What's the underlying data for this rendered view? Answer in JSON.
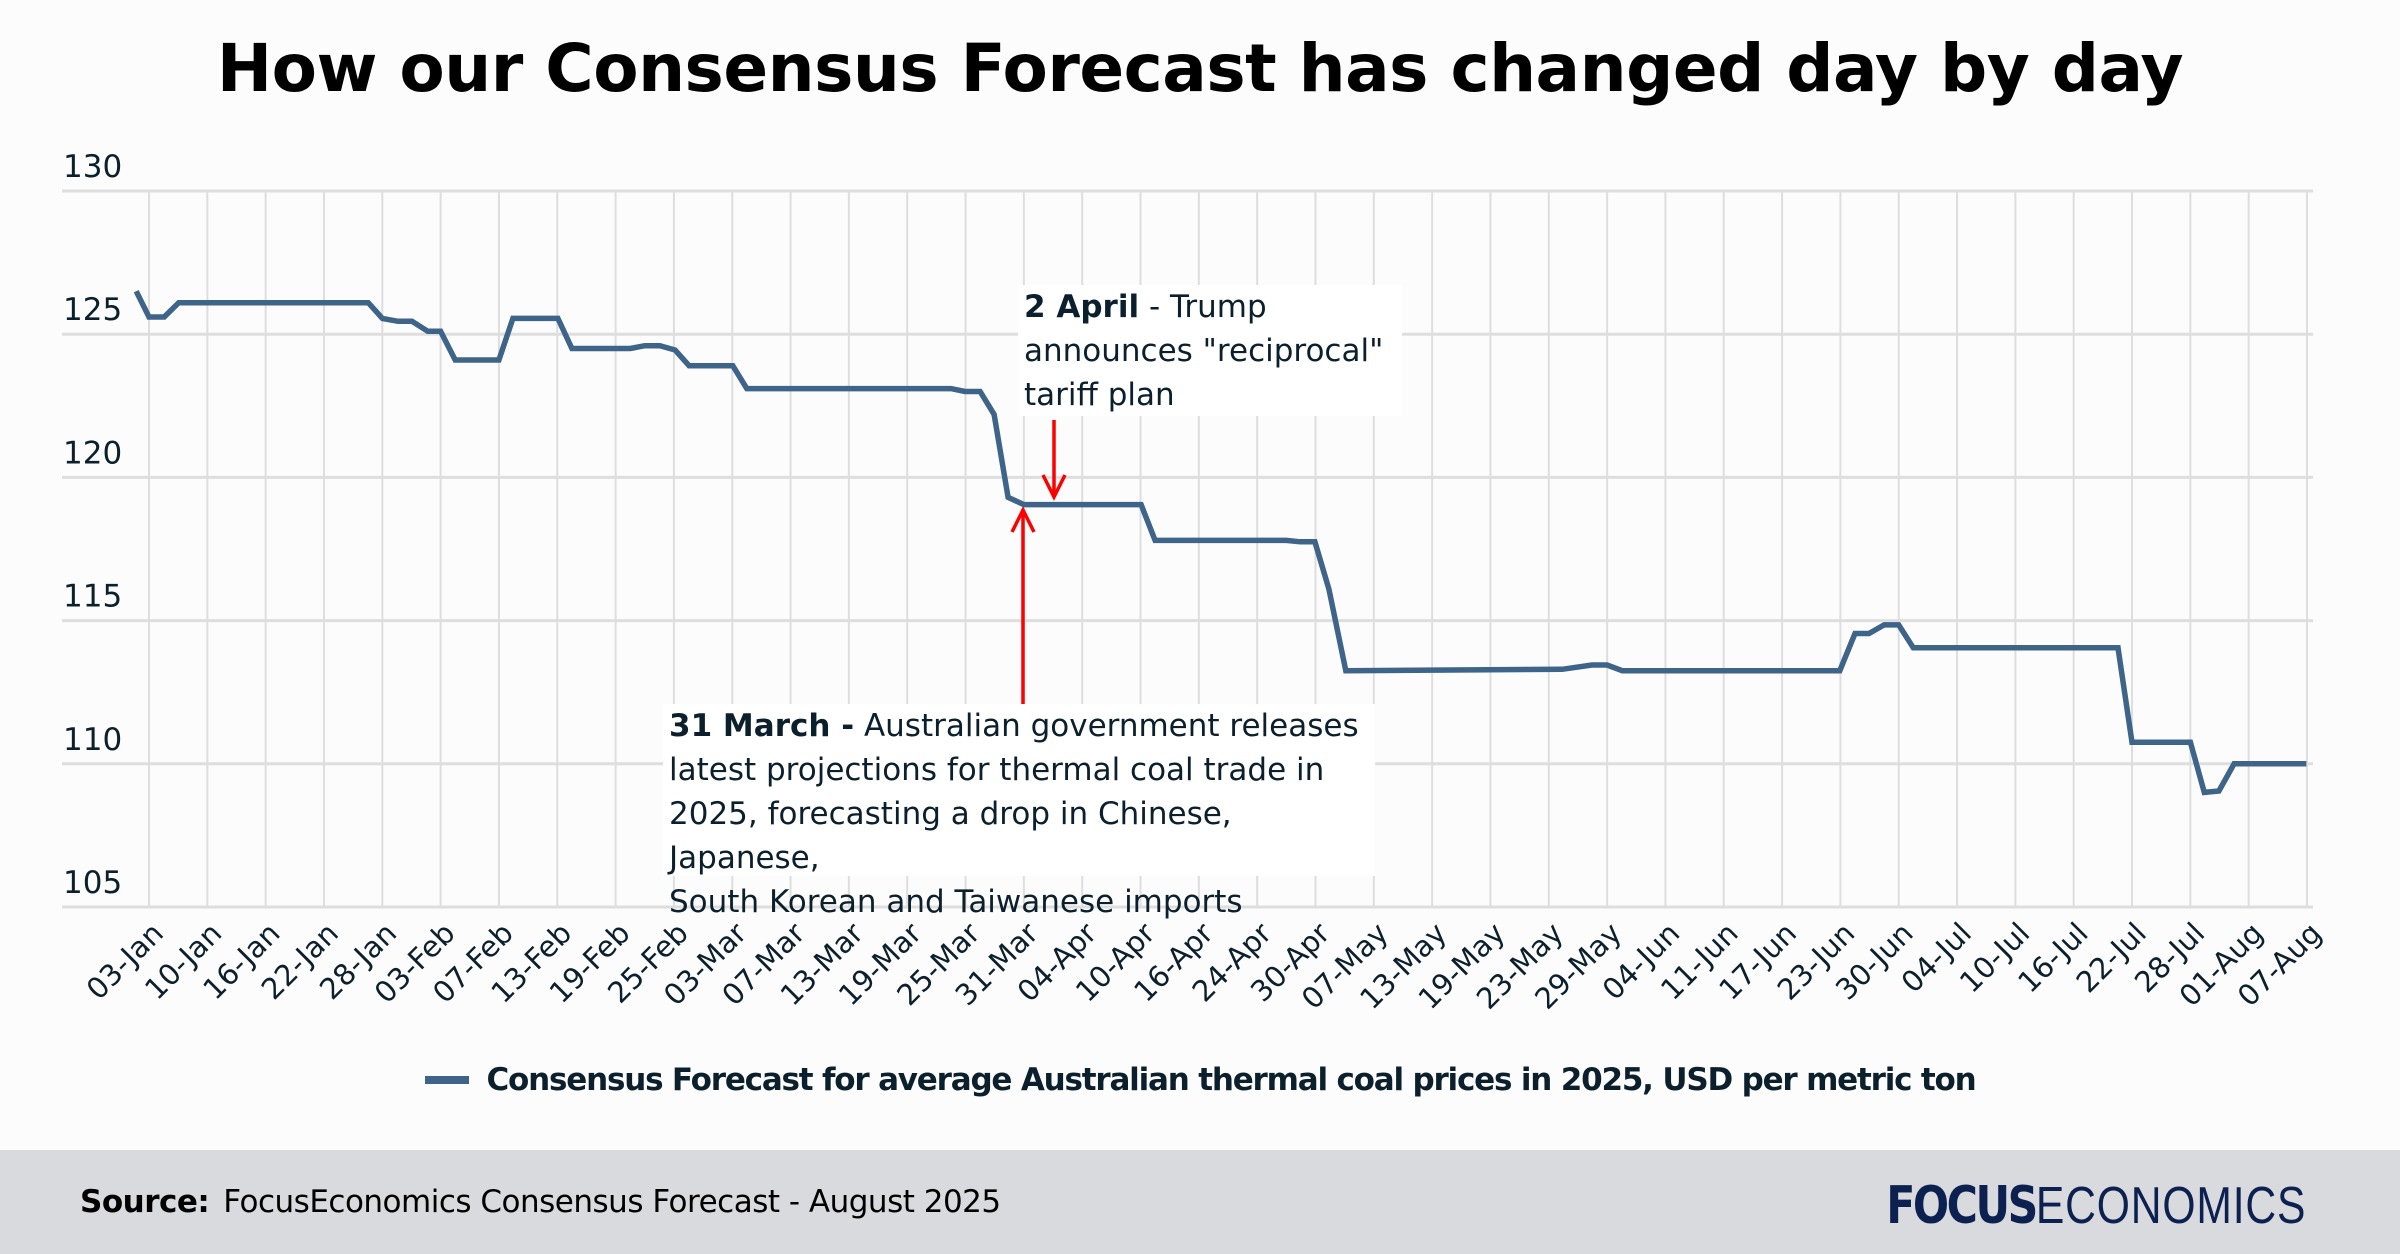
{
  "title": "How our Consensus Forecast has changed day by day",
  "chart_data": {
    "type": "line",
    "title": "How our Consensus Forecast has changed day by day",
    "xlabel": "",
    "ylabel": "",
    "ylim": [
      105,
      130
    ],
    "yticks": [
      130,
      125,
      120,
      115,
      110,
      105
    ],
    "grid": true,
    "categories": [
      "03-Jan",
      "10-Jan",
      "16-Jan",
      "22-Jan",
      "28-Jan",
      "03-Feb",
      "07-Feb",
      "13-Feb",
      "19-Feb",
      "25-Feb",
      "03-Mar",
      "07-Mar",
      "13-Mar",
      "19-Mar",
      "25-Mar",
      "31-Mar",
      "04-Apr",
      "10-Apr",
      "16-Apr",
      "24-Apr",
      "30-Apr",
      "07-May",
      "13-May",
      "19-May",
      "23-May",
      "29-May",
      "04-Jun",
      "11-Jun",
      "17-Jun",
      "23-Jun",
      "30-Jun",
      "04-Jul",
      "10-Jul",
      "16-Jul",
      "22-Jul",
      "28-Jul",
      "01-Aug",
      "07-Aug"
    ],
    "x_note": "x values are positions along the category axis in tick-index units (0 = 03-Jan, 37 = 07-Aug)",
    "series": [
      {
        "name": "Consensus Forecast for average Australian thermal coal prices in 2025, USD per metric ton",
        "color": "#3f6489",
        "x": [
          -0.22,
          0,
          0.26,
          0.51,
          3.76,
          4.0,
          4.27,
          4.51,
          4.78,
          5.0,
          5.25,
          6.0,
          6.24,
          7.01,
          7.25,
          8.25,
          8.5,
          8.76,
          9.02,
          9.26,
          10.01,
          10.25,
          13.75,
          13.99,
          14.25,
          14.49,
          14.73,
          15.0,
          17.01,
          17.25,
          19.5,
          19.74,
          19.99,
          20.23,
          20.52,
          24.23,
          24.74,
          25.0,
          25.26,
          28.99,
          29.25,
          29.49,
          29.75,
          30.0,
          30.25,
          33.76,
          34.0,
          35.0,
          35.24,
          35.49,
          35.75,
          36.99
        ],
        "values": [
          126.5,
          125.6,
          125.6,
          126.1,
          126.1,
          125.55,
          125.45,
          125.45,
          125.1,
          125.1,
          124.1,
          124.1,
          125.55,
          125.55,
          124.5,
          124.5,
          124.6,
          124.6,
          124.45,
          123.9,
          123.9,
          123.1,
          123.1,
          123.0,
          123.0,
          122.2,
          119.3,
          119.05,
          119.05,
          117.8,
          117.8,
          117.75,
          117.75,
          116.1,
          113.25,
          113.3,
          113.45,
          113.45,
          113.25,
          113.25,
          114.55,
          114.55,
          114.85,
          114.85,
          114.05,
          114.05,
          110.75,
          110.75,
          109.0,
          109.05,
          110.0,
          110.0
        ]
      }
    ],
    "legend": {
      "position": "bottom-center"
    },
    "annotations": [
      {
        "bold": "2 April",
        "text": " - Trump announces \"reciprocal\" tariff plan",
        "arrow_color": "#ff0000",
        "arrow_direction": "down",
        "target_x": 15.52,
        "target_y": 119.05
      },
      {
        "bold": "31 March -",
        "text": " Australian government releases latest projections for thermal coal trade in 2025, forecasting a drop in Chinese, Japanese, South Korean and Taiwanese imports",
        "arrow_color": "#ff0000",
        "arrow_direction": "up",
        "target_x": 15.0,
        "target_y": 119.05
      }
    ]
  },
  "annotations": {
    "april": {
      "bold": "2 April",
      "line1_rest": " - Trump",
      "line2": "announces \"reciprocal\"",
      "line3": "tariff plan"
    },
    "march": {
      "bold": "31 March -",
      "line1_rest": " Australian government releases",
      "line2": "latest projections for thermal coal trade in",
      "line3": "2025, forecasting a drop in Chinese, Japanese,",
      "line4": "South Korean and Taiwanese imports"
    }
  },
  "legend": {
    "label": "Consensus Forecast for average Australian thermal coal prices in 2025, USD per metric ton"
  },
  "footer": {
    "source_label": "Source:",
    "source_text": "FocusEconomics Consensus Forecast - August 2025",
    "logo_bold": "FOCUS",
    "logo_light": "ECONOMICS"
  }
}
